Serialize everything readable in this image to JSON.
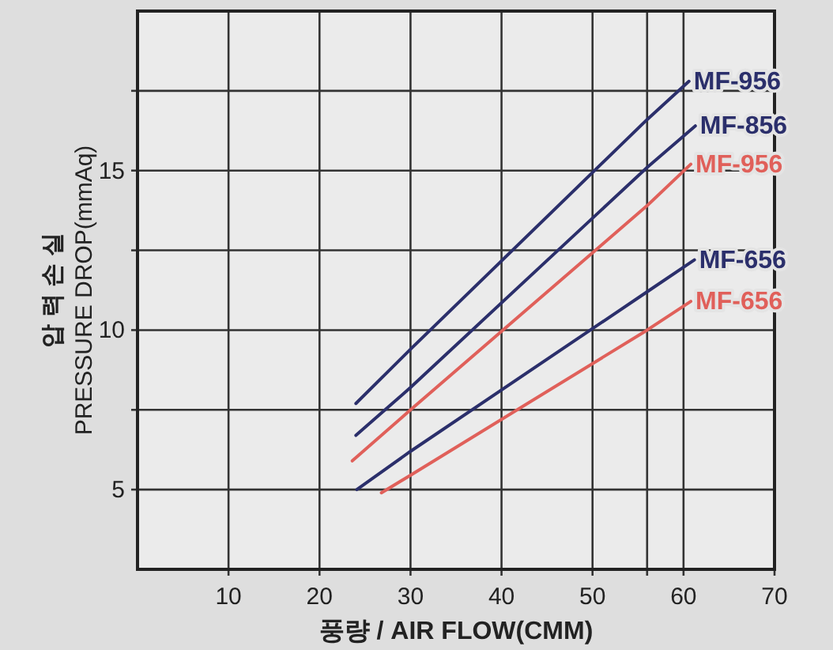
{
  "chart_data": {
    "type": "line",
    "xlabel": "풍량 / AIR FLOW(CMM)",
    "ylabel": "압 력 손 실\nPRESSURE DROP(mmAq)",
    "xlim": [
      0,
      70
    ],
    "xticks": [
      10,
      20,
      30,
      40,
      50,
      {
        "value": 56,
        "label": null
      },
      60,
      70
    ],
    "ylim": [
      2.5,
      20
    ],
    "yticks": [
      5,
      {
        "value": 7.5,
        "label": null
      },
      10,
      {
        "value": 12.5,
        "label": null
      },
      15,
      {
        "value": 17.5,
        "label": null
      }
    ],
    "grid": true,
    "line_style": "solid",
    "series": [
      {
        "name": "MF-956",
        "color": "#2b2f6b",
        "x": [
          24,
          30,
          56,
          60.6
        ],
        "values": [
          7.7,
          9.4,
          16.6,
          17.8
        ]
      },
      {
        "name": "MF-856",
        "color": "#2b2f6b",
        "x": [
          24,
          30,
          56,
          61.3
        ],
        "values": [
          6.7,
          8.2,
          15.1,
          16.4
        ]
      },
      {
        "name": "MF-956",
        "color": "#e0605a",
        "x": [
          23.6,
          30,
          56,
          60.8
        ],
        "values": [
          5.9,
          7.5,
          13.9,
          15.2
        ]
      },
      {
        "name": "MF-656",
        "color": "#2b2f6b",
        "x": [
          24.1,
          30,
          56,
          61.2
        ],
        "values": [
          5.0,
          6.2,
          11.2,
          12.2
        ]
      },
      {
        "name": "MF-656",
        "color": "#e0605a",
        "x": [
          26.8,
          30,
          56,
          60.8
        ],
        "values": [
          4.9,
          5.45,
          10.0,
          10.9
        ]
      }
    ]
  }
}
